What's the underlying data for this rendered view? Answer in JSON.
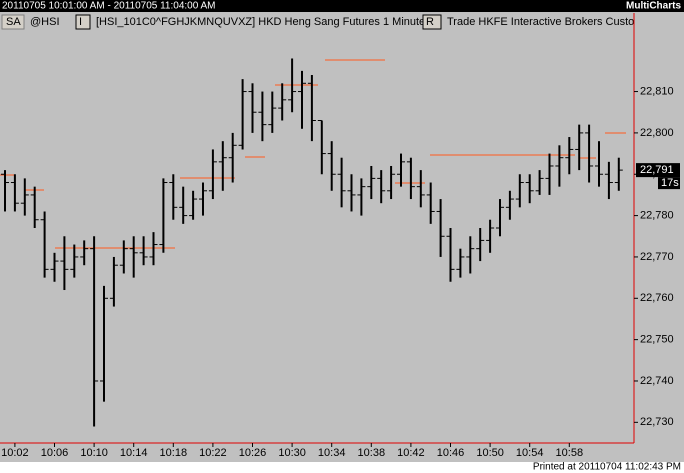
{
  "window": {
    "range": "20110705 10:01:00 AM - 20110705 11:04:00 AM",
    "app": "MultiCharts",
    "tab": "SA",
    "symbol": "@HSI",
    "interval_button": "I",
    "description": "[HSI_101C0^FGHJKMNQUVXZ] HKD  Heng Sang Futures  1 Minute",
    "range_button": "R",
    "source": "Trade  HKFE  Interactive Brokers  Custo",
    "footer": "Printed at 20110704 11:02:43 PM"
  },
  "chart_data": {
    "type": "ohlc",
    "categories": [
      null,
      "10:02",
      null,
      null,
      null,
      "10:06",
      null,
      null,
      null,
      "10:10",
      null,
      null,
      null,
      "10:14",
      null,
      null,
      null,
      "10:18",
      null,
      null,
      null,
      "10:22",
      null,
      null,
      null,
      "10:26",
      null,
      null,
      null,
      "10:30",
      null,
      null,
      null,
      "10:34",
      null,
      null,
      null,
      "10:38",
      null,
      null,
      null,
      "10:42",
      null,
      null,
      null,
      "10:46",
      null,
      null,
      null,
      "10:50",
      null,
      null,
      null,
      "10:54",
      null,
      null,
      null,
      "10:58",
      null,
      null,
      null,
      null,
      null
    ],
    "open": [
      22790,
      22788,
      22783,
      22785,
      22779,
      22767,
      22769,
      22767,
      22770,
      22772,
      22740,
      22760,
      22768,
      22772,
      22771,
      22770,
      22773,
      22788,
      22782,
      22780,
      22784,
      22786,
      22793,
      22794,
      22797,
      22810,
      22805,
      22802,
      22806,
      22808,
      22810,
      22812,
      22803,
      22795,
      22790,
      22786,
      22785,
      22787,
      22789,
      22786,
      22790,
      22793,
      22787,
      22785,
      22781,
      22775,
      22767,
      22770,
      22772,
      22774,
      22777,
      22782,
      22784,
      22788,
      22786,
      22789,
      22792,
      22794,
      22796,
      22800,
      22792,
      22790,
      22788
    ],
    "high": [
      22791,
      22790,
      22789,
      22787,
      22781,
      22771,
      22775,
      22773,
      22774,
      22775,
      22763,
      22770,
      22774,
      22775,
      22775,
      22776,
      22789,
      22790,
      22787,
      22786,
      22788,
      22796,
      22798,
      22800,
      22813,
      22812,
      22810,
      22810,
      22812,
      22818,
      22815,
      22814,
      22803,
      22798,
      22794,
      22790,
      22789,
      22792,
      22791,
      22792,
      22795,
      22794,
      22791,
      22788,
      22784,
      22777,
      22772,
      22775,
      22777,
      22779,
      22784,
      22786,
      22790,
      22790,
      22791,
      22795,
      22797,
      22799,
      22802,
      22802,
      22798,
      22793,
      22794
    ],
    "low": [
      22781,
      22781,
      22780,
      22777,
      22765,
      22764,
      22762,
      22765,
      22768,
      22729,
      22735,
      22758,
      22766,
      22765,
      22768,
      22768,
      22771,
      22779,
      22778,
      22779,
      22780,
      22784,
      22786,
      22788,
      22796,
      22800,
      22798,
      22800,
      22803,
      22805,
      22801,
      22798,
      22790,
      22786,
      22782,
      22781,
      22780,
      22784,
      22783,
      22784,
      22787,
      22784,
      22782,
      22778,
      22770,
      22764,
      22765,
      22766,
      22769,
      22771,
      22775,
      22779,
      22782,
      22783,
      22785,
      22785,
      22787,
      22790,
      22791,
      22788,
      22787,
      22784,
      22786
    ],
    "close": [
      22788,
      22783,
      22785,
      22779,
      22767,
      22769,
      22767,
      22770,
      22772,
      22740,
      22760,
      22768,
      22772,
      22771,
      22770,
      22773,
      22788,
      22782,
      22780,
      22784,
      22786,
      22793,
      22794,
      22797,
      22810,
      22805,
      22802,
      22806,
      22808,
      22810,
      22812,
      22803,
      22795,
      22790,
      22786,
      22785,
      22787,
      22789,
      22786,
      22790,
      22793,
      22787,
      22785,
      22781,
      22775,
      22767,
      22770,
      22772,
      22774,
      22777,
      22782,
      22784,
      22788,
      22786,
      22789,
      22792,
      22794,
      22796,
      22800,
      22792,
      22790,
      22788,
      22791
    ],
    "color": "#000000",
    "ylim": [
      22725,
      22829
    ],
    "yticks": [
      {
        "value": 22730,
        "label": "22,730"
      },
      {
        "value": 22740,
        "label": "22,740"
      },
      {
        "value": 22750,
        "label": "22,750"
      },
      {
        "value": 22760,
        "label": "22,760"
      },
      {
        "value": 22770,
        "label": "22,770"
      },
      {
        "value": 22780,
        "label": "22,780"
      },
      {
        "value": 22790,
        "label": "22,790"
      },
      {
        "value": 22800,
        "label": "22,800"
      },
      {
        "value": 22810,
        "label": "22,810"
      }
    ],
    "last_price": {
      "value": 22791,
      "label": "22,791"
    },
    "countdown": "17s",
    "grid": false
  }
}
